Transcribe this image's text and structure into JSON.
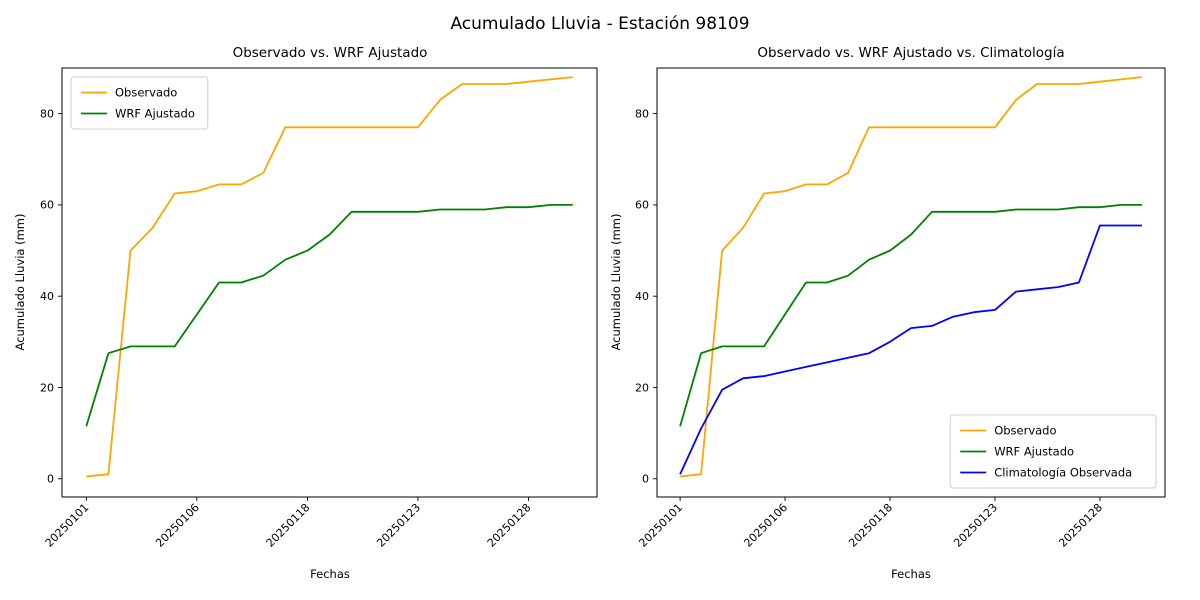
{
  "suptitle": "Acumulado Lluvia - Estación 98109",
  "chart_data": [
    {
      "type": "line",
      "title": "Observado vs. WRF Ajustado",
      "xlabel": "Fechas",
      "ylabel": "Acumulado Lluvia (mm)",
      "ylim": [
        -4,
        90
      ],
      "yticks": [
        0,
        20,
        40,
        60,
        80
      ],
      "xlim": [
        -1.1,
        23.1
      ],
      "xticks": [
        {
          "pos": 0,
          "label": "20250101"
        },
        {
          "pos": 5,
          "label": "20250106"
        },
        {
          "pos": 10,
          "label": "20250118"
        },
        {
          "pos": 15,
          "label": "20250123"
        },
        {
          "pos": 20,
          "label": "20250128"
        }
      ],
      "grid": false,
      "legend_loc": "upper-left",
      "series": [
        {
          "name": "Observado",
          "color": "#ffa500",
          "values": [
            0.5,
            1,
            50,
            55,
            62.5,
            63,
            64.5,
            64.5,
            67,
            77,
            77,
            77,
            77,
            77,
            77,
            77,
            83,
            86.5,
            86.5,
            86.5,
            87,
            87.5,
            88
          ]
        },
        {
          "name": "WRF Ajustado",
          "color": "#008000",
          "values": [
            11.5,
            27.5,
            29,
            29,
            29,
            36,
            43,
            43,
            44.5,
            48,
            50,
            53.5,
            58.5,
            58.5,
            58.5,
            58.5,
            59,
            59,
            59,
            59.5,
            59.5,
            60,
            60
          ]
        }
      ]
    },
    {
      "type": "line",
      "title": "Observado vs. WRF Ajustado vs. Climatología",
      "xlabel": "Fechas",
      "ylabel": "Acumulado Lluvia (mm)",
      "ylim": [
        -4,
        90
      ],
      "yticks": [
        0,
        20,
        40,
        60,
        80
      ],
      "xlim": [
        -1.1,
        23.1
      ],
      "xticks": [
        {
          "pos": 0,
          "label": "20250101"
        },
        {
          "pos": 5,
          "label": "20250106"
        },
        {
          "pos": 10,
          "label": "20250118"
        },
        {
          "pos": 15,
          "label": "20250123"
        },
        {
          "pos": 20,
          "label": "20250128"
        }
      ],
      "grid": false,
      "legend_loc": "lower-right",
      "series": [
        {
          "name": "Observado",
          "color": "#ffa500",
          "values": [
            0.5,
            1,
            50,
            55,
            62.5,
            63,
            64.5,
            64.5,
            67,
            77,
            77,
            77,
            77,
            77,
            77,
            77,
            83,
            86.5,
            86.5,
            86.5,
            87,
            87.5,
            88
          ]
        },
        {
          "name": "WRF Ajustado",
          "color": "#008000",
          "values": [
            11.5,
            27.5,
            29,
            29,
            29,
            36,
            43,
            43,
            44.5,
            48,
            50,
            53.5,
            58.5,
            58.5,
            58.5,
            58.5,
            59,
            59,
            59,
            59.5,
            59.5,
            60,
            60
          ]
        },
        {
          "name": "Climatología Observada",
          "color": "#0000ff",
          "values": [
            1,
            11,
            19.5,
            22,
            22.5,
            23.5,
            24.5,
            25.5,
            26.5,
            27.5,
            30,
            33,
            33.5,
            35.5,
            36.5,
            37,
            41,
            41.5,
            42,
            43,
            55.5,
            55.5,
            55.5
          ]
        }
      ]
    }
  ]
}
